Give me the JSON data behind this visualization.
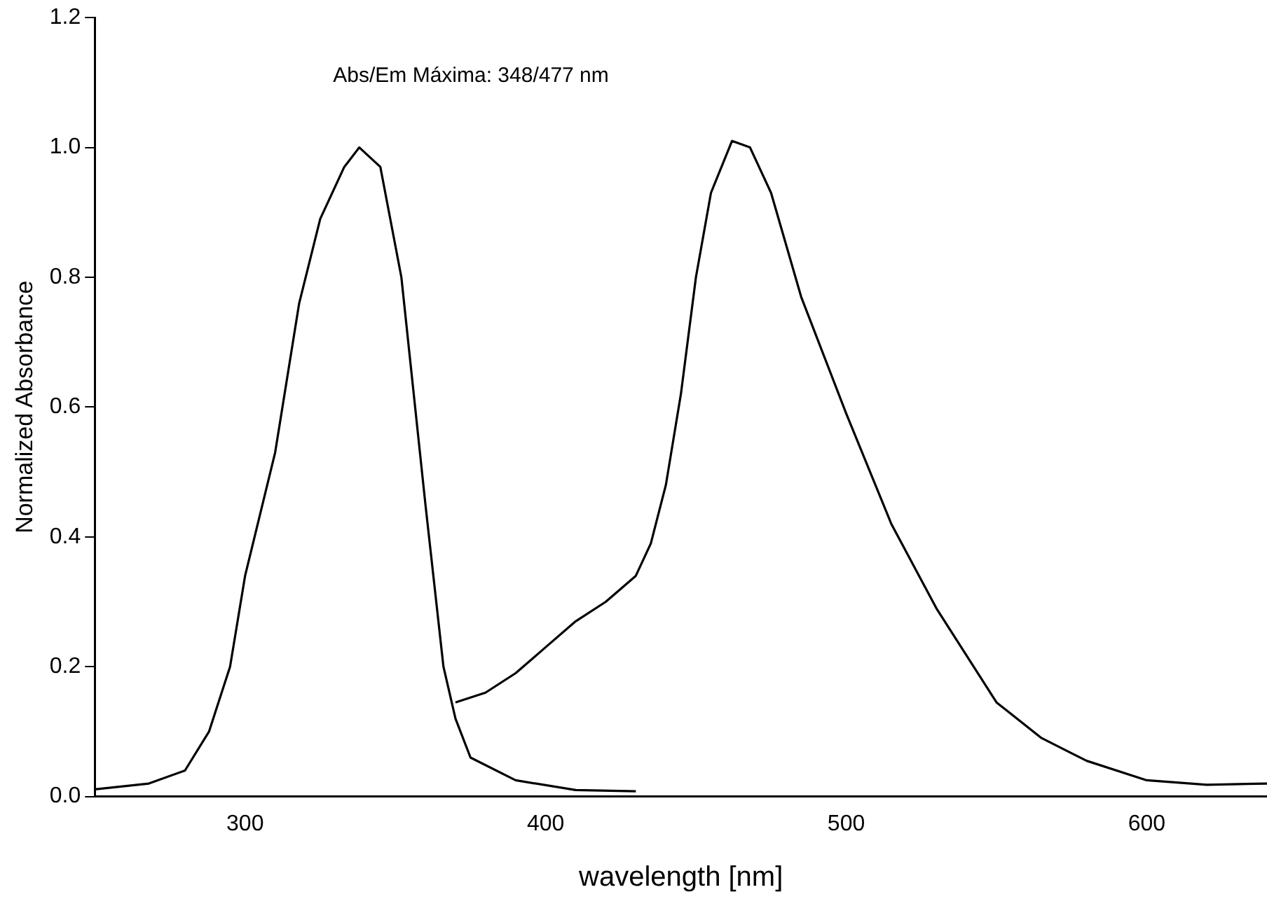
{
  "chart_data": {
    "type": "line",
    "xlabel": "wavelength [nm]",
    "ylabel": "Normalized Absorbance",
    "annotations": [
      "Abs/Em Máxima: 348/477 nm"
    ],
    "xlim": [
      250,
      640
    ],
    "xticks": [
      300,
      400,
      500,
      600
    ],
    "ylim": [
      0,
      1.2
    ],
    "yticks": [
      {
        "value": 0,
        "label": "0.0"
      },
      {
        "value": 0.2,
        "label": "0.2"
      },
      {
        "value": 0.4,
        "label": "0.4"
      },
      {
        "value": 0.6,
        "label": "0.6"
      },
      {
        "value": 0.8,
        "label": "0.8"
      },
      {
        "value": 1,
        "label": "1.0"
      },
      {
        "value": 1.2,
        "label": "1.2"
      }
    ],
    "grid": false,
    "legend": false,
    "marker": "none",
    "line_style": "solid",
    "series": [
      {
        "color": "#000000",
        "x": [
          250,
          268,
          280,
          288,
          295,
          300,
          310,
          318,
          325,
          333,
          338,
          345,
          352,
          360,
          366,
          370,
          375,
          390,
          410,
          430
        ],
        "values": [
          0.011,
          0.02,
          0.04,
          0.1,
          0.2,
          0.34,
          0.53,
          0.76,
          0.89,
          0.97,
          1.0,
          0.97,
          0.8,
          0.45,
          0.2,
          0.12,
          0.06,
          0.025,
          0.01,
          0.008
        ]
      },
      {
        "color": "#000000",
        "x": [
          370,
          380,
          390,
          400,
          410,
          420,
          430,
          435,
          440,
          445,
          450,
          455,
          462,
          468,
          475,
          485,
          500,
          515,
          530,
          550,
          565,
          580,
          600,
          620,
          640
        ],
        "values": [
          0.145,
          0.16,
          0.19,
          0.23,
          0.27,
          0.3,
          0.34,
          0.39,
          0.48,
          0.62,
          0.8,
          0.93,
          1.01,
          1.0,
          0.93,
          0.77,
          0.59,
          0.42,
          0.29,
          0.145,
          0.09,
          0.055,
          0.025,
          0.018,
          0.02
        ]
      }
    ]
  }
}
